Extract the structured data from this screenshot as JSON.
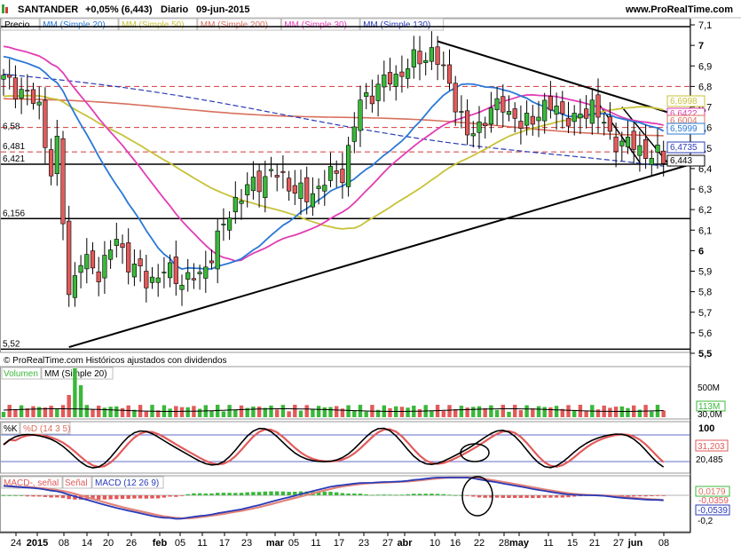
{
  "header": {
    "symbol": "SANTANDER",
    "change": "+0,05% (6,443)",
    "period": "Diario",
    "date": "09-jun-2015",
    "site": "www.ProRealTime.com"
  },
  "price_panel": {
    "legend": [
      {
        "text": "Precio",
        "color": "#000000"
      },
      {
        "text": "MM (Simple 20)",
        "color": "#2a78d6"
      },
      {
        "text": "MM (Simple 50)",
        "color": "#c8c23a"
      },
      {
        "text": "MM (Simple 200)",
        "color": "#d8705e"
      },
      {
        "text": "MM (Simple 30)",
        "color": "#e23db4"
      },
      {
        "text": "MM (Simple 130)",
        "color": "#2a3bb8"
      }
    ],
    "footer_text": "© ProRealTime.com  Históricos ajustados con dividendos",
    "left_labels": [
      "6,58",
      "6,481",
      "6,421",
      "6,156",
      "5,52"
    ],
    "right_ticks": [
      "7,1",
      "7",
      "6,9",
      "6,8",
      "6,7",
      "6,6",
      "6,5",
      "6,4",
      "6,3",
      "6,2",
      "6,1",
      "6",
      "5,9",
      "5,8",
      "5,7",
      "5,6",
      "5,5"
    ],
    "right_badges": [
      {
        "text": "6,6998",
        "color": "#c8c23a"
      },
      {
        "text": "6,6422",
        "color": "#e23db4"
      },
      {
        "text": "6,6004",
        "color": "#d8705e"
      },
      {
        "text": "6,5999",
        "color": "#2a78d6"
      },
      {
        "text": "6,4735",
        "color": "#2a3bb8"
      },
      {
        "text": "6,443",
        "color": "#000000"
      }
    ]
  },
  "volume_panel": {
    "legend": [
      "Volumen",
      "MM (Simple 20)"
    ],
    "ticks": [
      "500M",
      "113M",
      "30,0M"
    ]
  },
  "stoch_panel": {
    "legend": [
      "%K",
      "%D (14 3 5)"
    ],
    "ticks": [
      "100",
      "31,203",
      "20,485"
    ]
  },
  "macd_panel": {
    "legend": [
      "MACD-, señal",
      "Señal",
      "MACD (12 26 9)"
    ],
    "ticks": [
      "0,0179",
      "-0,0359",
      "-0,0539",
      "-0,2"
    ]
  },
  "x_axis": {
    "labels": [
      "24",
      "2015",
      "08",
      "14",
      "20",
      "26",
      "feb",
      "05",
      "11",
      "17",
      "23",
      "mar",
      "05",
      "11",
      "17",
      "23",
      "27",
      "abr",
      "10",
      "16",
      "22",
      "28",
      "may",
      "11",
      "15",
      "21",
      "27",
      "jun",
      "08"
    ]
  },
  "chart_data": {
    "type": "candlestick",
    "price_range": [
      5.5,
      7.1
    ],
    "support_resistance": [
      6.58,
      6.481,
      6.421,
      6.156,
      5.52
    ],
    "indicators": [
      "MM 20",
      "MM 50",
      "MM 200",
      "MM 30",
      "MM 130",
      "Volumen",
      "Stochastic %K %D (14 3 5)",
      "MACD (12 26 9)"
    ],
    "last_close": 6.443
  }
}
